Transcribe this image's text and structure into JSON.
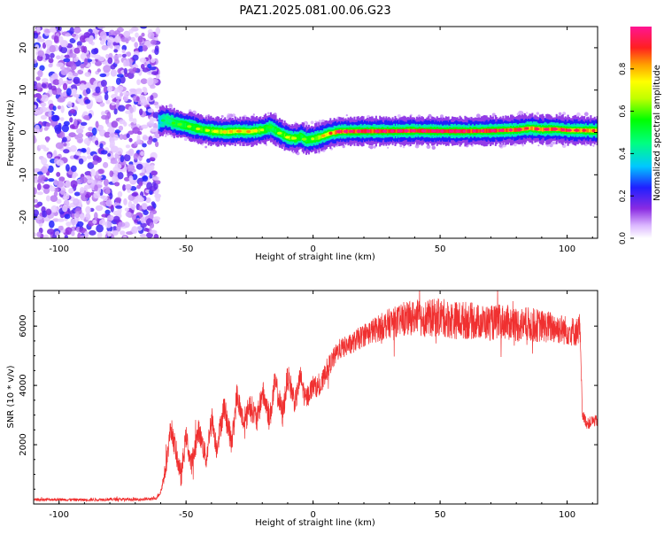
{
  "title": "PAZ1.2025.081.00.06.G23",
  "chart_data": [
    {
      "type": "heatmap",
      "xlabel": "Height of straight line (km)",
      "ylabel": "Frequency (Hz)",
      "xlim": [
        -110,
        112
      ],
      "ylim": [
        -25,
        25
      ],
      "xticks": [
        -100,
        -50,
        0,
        50,
        100
      ],
      "yticks": [
        -20,
        -10,
        0,
        10,
        20
      ],
      "colorbar": {
        "label": "Normalized spectral amplitude",
        "range": [
          0,
          1
        ],
        "ticks": [
          "0.0",
          "0.2",
          "0.4",
          "0.6",
          "0.8"
        ],
        "colormap": "white-purple-blue-cyan-green-yellow-red-pink"
      },
      "noise_region": {
        "x_range": [
          -110,
          -61
        ],
        "y_range": [
          -25,
          25
        ],
        "peak_amplitude": 0.25
      },
      "ridge": {
        "x": [
          -61,
          -58,
          -55,
          -50,
          -45,
          -40,
          -35,
          -30,
          -25,
          -20,
          -17,
          -15,
          -12,
          -10,
          -7,
          -5,
          -3,
          0,
          3,
          6,
          10,
          20,
          30,
          40,
          50,
          60,
          70,
          80,
          85,
          90,
          95,
          100,
          105,
          112
        ],
        "y": [
          2.5,
          3.0,
          2.2,
          1.6,
          0.8,
          0.3,
          0.1,
          0.3,
          0.2,
          0.6,
          1.2,
          0.4,
          -0.6,
          -1.2,
          -1.4,
          -0.9,
          -1.8,
          -1.5,
          -1.0,
          -0.3,
          0.2,
          0.3,
          0.3,
          0.4,
          0.3,
          0.3,
          0.4,
          0.6,
          1.0,
          0.7,
          0.8,
          0.5,
          0.5,
          0.4
        ],
        "amplitude": [
          0.35,
          0.45,
          0.5,
          0.55,
          0.6,
          0.65,
          0.7,
          0.75,
          0.75,
          0.6,
          0.5,
          0.55,
          0.6,
          0.65,
          0.6,
          0.55,
          0.55,
          0.6,
          0.7,
          0.8,
          0.9,
          0.95,
          0.95,
          0.95,
          1.0,
          0.95,
          0.95,
          0.9,
          0.85,
          0.9,
          0.9,
          0.9,
          0.85,
          0.85
        ]
      }
    },
    {
      "type": "line",
      "xlabel": "Height of straight line (km)",
      "ylabel": "SNR (10 * v/v)",
      "xlim": [
        -110,
        112
      ],
      "ylim": [
        0,
        7200
      ],
      "xticks": [
        -100,
        -50,
        0,
        50,
        100
      ],
      "yticks": [
        2000,
        4000,
        6000
      ],
      "color": "#f03030",
      "x": [
        -110,
        -100,
        -90,
        -80,
        -70,
        -62,
        -60,
        -58,
        -56,
        -54,
        -52,
        -50,
        -48,
        -45,
        -42,
        -40,
        -38,
        -35,
        -32,
        -30,
        -27,
        -25,
        -22,
        -20,
        -17,
        -15,
        -12,
        -10,
        -7,
        -5,
        -3,
        0,
        3,
        5,
        8,
        10,
        15,
        20,
        25,
        30,
        35,
        40,
        45,
        50,
        55,
        60,
        65,
        70,
        75,
        80,
        85,
        90,
        95,
        100,
        104,
        105,
        106,
        108,
        110,
        112
      ],
      "y": [
        150,
        150,
        140,
        160,
        150,
        180,
        400,
        1200,
        2600,
        1800,
        900,
        2300,
        1300,
        2500,
        1500,
        3000,
        1900,
        3300,
        2000,
        3700,
        2600,
        3400,
        2800,
        3800,
        2900,
        4100,
        3000,
        4300,
        3400,
        4300,
        3500,
        4000,
        3900,
        4500,
        4900,
        5200,
        5400,
        5700,
        5900,
        6100,
        6200,
        6300,
        6250,
        6300,
        6200,
        6200,
        6150,
        6100,
        6150,
        6050,
        6050,
        6000,
        5950,
        5850,
        5800,
        6000,
        3000,
        2700,
        2800,
        2800
      ],
      "noise_amplitude": [
        50,
        50,
        50,
        50,
        50,
        50,
        100,
        300,
        400,
        400,
        400,
        400,
        400,
        400,
        400,
        400,
        400,
        450,
        450,
        450,
        450,
        450,
        450,
        450,
        450,
        450,
        450,
        450,
        400,
        400,
        400,
        350,
        350,
        350,
        350,
        350,
        350,
        400,
        450,
        500,
        550,
        600,
        650,
        650,
        650,
        650,
        600,
        600,
        600,
        600,
        600,
        550,
        550,
        500,
        500,
        500,
        200,
        200,
        200,
        200
      ]
    }
  ]
}
